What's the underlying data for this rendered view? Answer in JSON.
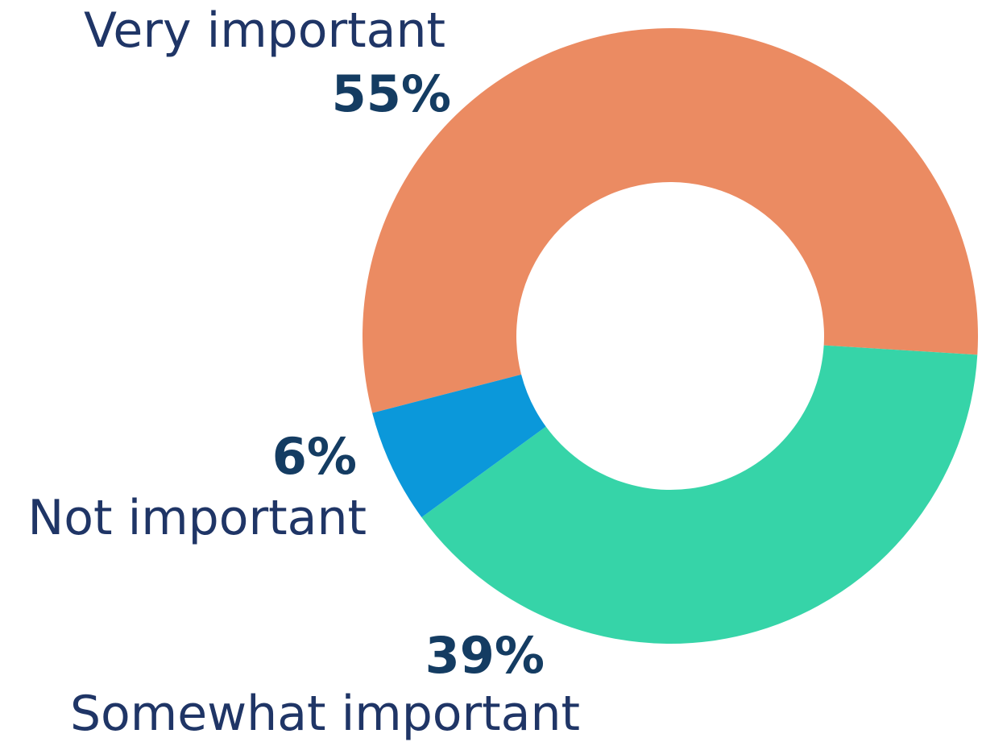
{
  "chart_data": {
    "type": "pie",
    "title": "",
    "categories": [
      "Very important",
      "Somewhat important",
      "Not important"
    ],
    "values": [
      55,
      39,
      6
    ],
    "value_labels": [
      "55%",
      "39%",
      "6%"
    ],
    "colors": [
      "#eb8b62",
      "#36d4a8",
      "#0b98da"
    ]
  }
}
